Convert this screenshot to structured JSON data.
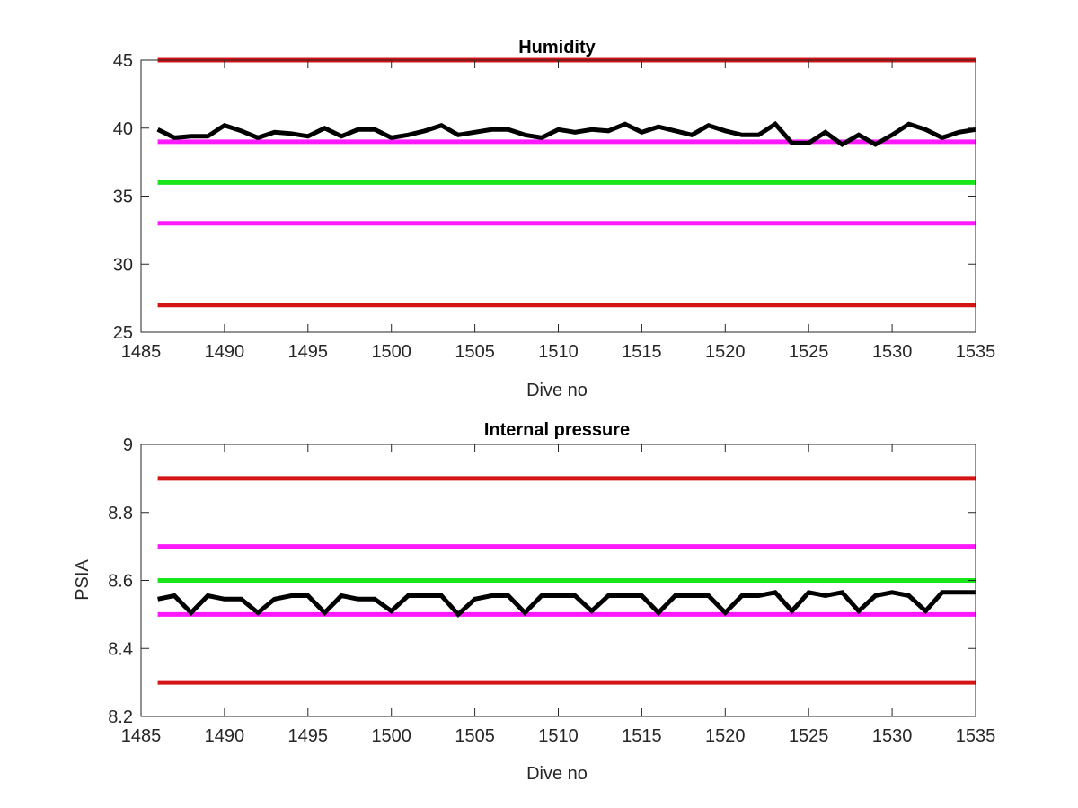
{
  "figure": {
    "colors": {
      "limit_red": "#d41515",
      "warn_magenta": "#ff19ff",
      "target_green": "#19e619",
      "data_black": "#000000",
      "axis": "#262626"
    }
  },
  "chart_data": [
    {
      "type": "line",
      "title": "Humidity",
      "xlabel": "Dive no",
      "ylabel": "",
      "xlim": [
        1485,
        1535
      ],
      "ylim": [
        25,
        45
      ],
      "xticks": [
        1485,
        1490,
        1495,
        1500,
        1505,
        1510,
        1515,
        1520,
        1525,
        1530,
        1535
      ],
      "xtick_labels": [
        "1485",
        "1490",
        "1495",
        "1500",
        "1505",
        "1510",
        "1515",
        "1520",
        "1525",
        "1530",
        "1535"
      ],
      "yticks": [
        25,
        30,
        35,
        40,
        45
      ],
      "ytick_labels": [
        "25",
        "30",
        "35",
        "40",
        "45"
      ],
      "grid": false,
      "reference_lines": [
        {
          "y": 45,
          "color": "#d41515"
        },
        {
          "y": 39,
          "color": "#ff19ff"
        },
        {
          "y": 36,
          "color": "#19e619"
        },
        {
          "y": 33,
          "color": "#ff19ff"
        },
        {
          "y": 27,
          "color": "#d41515"
        }
      ],
      "series": [
        {
          "color": "#000000",
          "x": [
            1486,
            1487,
            1488,
            1489,
            1490,
            1491,
            1492,
            1493,
            1494,
            1495,
            1496,
            1497,
            1498,
            1499,
            1500,
            1501,
            1502,
            1503,
            1504,
            1505,
            1506,
            1507,
            1508,
            1509,
            1510,
            1511,
            1512,
            1513,
            1514,
            1515,
            1516,
            1517,
            1518,
            1519,
            1520,
            1521,
            1522,
            1523,
            1524,
            1525,
            1526,
            1527,
            1528,
            1529,
            1530,
            1531,
            1532,
            1533,
            1534,
            1535
          ],
          "y": [
            39.9,
            39.3,
            39.4,
            39.4,
            40.2,
            39.8,
            39.3,
            39.7,
            39.6,
            39.4,
            40.0,
            39.4,
            39.9,
            39.9,
            39.3,
            39.5,
            39.8,
            40.2,
            39.5,
            39.7,
            39.9,
            39.9,
            39.5,
            39.3,
            39.9,
            39.7,
            39.9,
            39.8,
            40.3,
            39.7,
            40.1,
            39.8,
            39.5,
            40.2,
            39.8,
            39.5,
            39.5,
            40.3,
            38.9,
            38.9,
            39.7,
            38.8,
            39.5,
            38.8,
            39.5,
            40.3,
            39.9,
            39.3,
            39.7,
            39.9
          ]
        }
      ]
    },
    {
      "type": "line",
      "title": "Internal pressure",
      "xlabel": "Dive no",
      "ylabel": "PSIA",
      "xlim": [
        1485,
        1535
      ],
      "ylim": [
        8.2,
        9.0
      ],
      "xticks": [
        1485,
        1490,
        1495,
        1500,
        1505,
        1510,
        1515,
        1520,
        1525,
        1530,
        1535
      ],
      "xtick_labels": [
        "1485",
        "1490",
        "1495",
        "1500",
        "1505",
        "1510",
        "1515",
        "1520",
        "1525",
        "1530",
        "1535"
      ],
      "yticks": [
        8.2,
        8.4,
        8.6,
        8.8,
        9.0
      ],
      "ytick_labels": [
        "8.2",
        "8.4",
        "8.6",
        "8.8",
        "9"
      ],
      "grid": false,
      "reference_lines": [
        {
          "y": 8.9,
          "color": "#d41515"
        },
        {
          "y": 8.7,
          "color": "#ff19ff"
        },
        {
          "y": 8.6,
          "color": "#19e619"
        },
        {
          "y": 8.5,
          "color": "#ff19ff"
        },
        {
          "y": 8.3,
          "color": "#d41515"
        }
      ],
      "series": [
        {
          "color": "#000000",
          "x": [
            1486,
            1487,
            1488,
            1489,
            1490,
            1491,
            1492,
            1493,
            1494,
            1495,
            1496,
            1497,
            1498,
            1499,
            1500,
            1501,
            1502,
            1503,
            1504,
            1505,
            1506,
            1507,
            1508,
            1509,
            1510,
            1511,
            1512,
            1513,
            1514,
            1515,
            1516,
            1517,
            1518,
            1519,
            1520,
            1521,
            1522,
            1523,
            1524,
            1525,
            1526,
            1527,
            1528,
            1529,
            1530,
            1531,
            1532,
            1533,
            1534,
            1535
          ],
          "y": [
            8.545,
            8.555,
            8.505,
            8.555,
            8.545,
            8.545,
            8.505,
            8.545,
            8.555,
            8.555,
            8.505,
            8.555,
            8.545,
            8.545,
            8.51,
            8.555,
            8.555,
            8.555,
            8.5,
            8.545,
            8.555,
            8.555,
            8.505,
            8.555,
            8.555,
            8.555,
            8.51,
            8.555,
            8.555,
            8.555,
            8.505,
            8.555,
            8.555,
            8.555,
            8.505,
            8.555,
            8.555,
            8.565,
            8.51,
            8.565,
            8.555,
            8.565,
            8.51,
            8.555,
            8.565,
            8.555,
            8.51,
            8.565,
            8.565,
            8.565
          ]
        }
      ]
    }
  ]
}
